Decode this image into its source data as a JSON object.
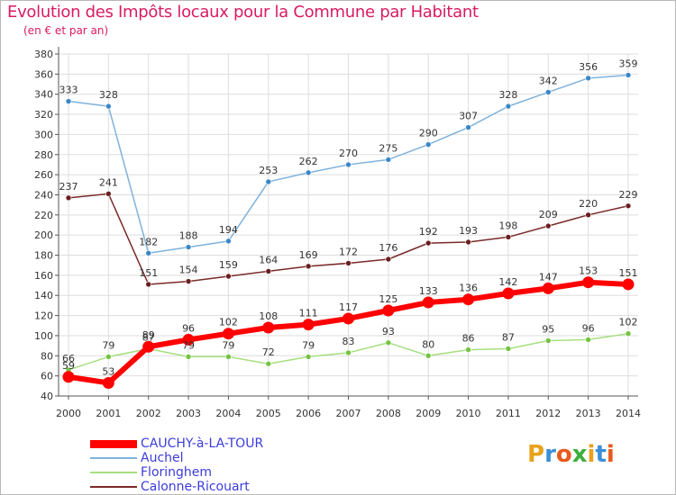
{
  "title": "Evolution des Impôts locaux pour la Commune par Habitant",
  "subtitle": "(en € et par an)",
  "logo": "Proxiti",
  "colors": {
    "title": "#d81b60",
    "legend_text": "#3c3cdc",
    "grid": "#dddddd"
  },
  "chart_data": {
    "type": "line",
    "title": "Evolution des Impôts locaux pour la Commune par Habitant",
    "subtitle": "(en € et par an)",
    "xlabel": "",
    "ylabel": "",
    "x": [
      "2000",
      "2001",
      "2002",
      "2003",
      "2004",
      "2005",
      "2006",
      "2007",
      "2008",
      "2009",
      "2010",
      "2011",
      "2012",
      "2013",
      "2014"
    ],
    "ylim": [
      40,
      380
    ],
    "yticks": [
      40,
      60,
      80,
      100,
      120,
      140,
      160,
      180,
      200,
      220,
      240,
      260,
      280,
      300,
      320,
      340,
      360,
      380
    ],
    "grid": true,
    "legend_position": "bottom-left",
    "series": [
      {
        "name": "CAUCHY-à-LA-TOUR",
        "color": "#ff0000",
        "marker": "#ff0000",
        "width": 6,
        "labels_above": true,
        "values": [
          59,
          53,
          89,
          96,
          102,
          108,
          111,
          117,
          125,
          133,
          136,
          142,
          147,
          153,
          151
        ]
      },
      {
        "name": "Auchel",
        "color": "#7fb2dc",
        "marker": "#3a87c8",
        "width": 1.5,
        "labels_above": true,
        "values": [
          333,
          328,
          182,
          188,
          194,
          253,
          262,
          270,
          275,
          290,
          307,
          328,
          342,
          356,
          359
        ]
      },
      {
        "name": "Floringhem",
        "color": "#a6df80",
        "marker": "#74c43f",
        "width": 1.5,
        "labels_above": true,
        "values": [
          66,
          79,
          87,
          79,
          79,
          72,
          79,
          83,
          93,
          80,
          86,
          87,
          95,
          96,
          102
        ]
      },
      {
        "name": "Calonne-Ricouart",
        "color": "#7a2a2a",
        "marker": "#6b1e1e",
        "width": 1.5,
        "labels_above": true,
        "values": [
          237,
          241,
          151,
          154,
          159,
          164,
          169,
          172,
          176,
          192,
          193,
          198,
          209,
          220,
          229
        ]
      }
    ],
    "data_labels": {
      "CAUCHY-à-LA-TOUR": [
        "59",
        "53",
        "89",
        "96",
        "102",
        "108",
        "111",
        "117",
        "125",
        "133",
        "136",
        "142",
        "147",
        "153",
        "151"
      ],
      "Auchel": [
        "333",
        "328",
        "182",
        "188",
        "194",
        "253",
        "262",
        "270",
        "275",
        "290",
        "307",
        "328",
        "342",
        "356",
        "359"
      ],
      "Floringhem": [
        "66",
        "79",
        "87",
        "79",
        "79",
        "72",
        "79",
        "83",
        "93",
        "80",
        "86",
        "87",
        "95",
        "96",
        "102"
      ],
      "Calonne-Ricouart": [
        "237",
        "241",
        "151",
        "154",
        "159",
        "164",
        "169",
        "172",
        "176",
        "192",
        "193",
        "198",
        "209",
        "220",
        "229"
      ]
    }
  }
}
